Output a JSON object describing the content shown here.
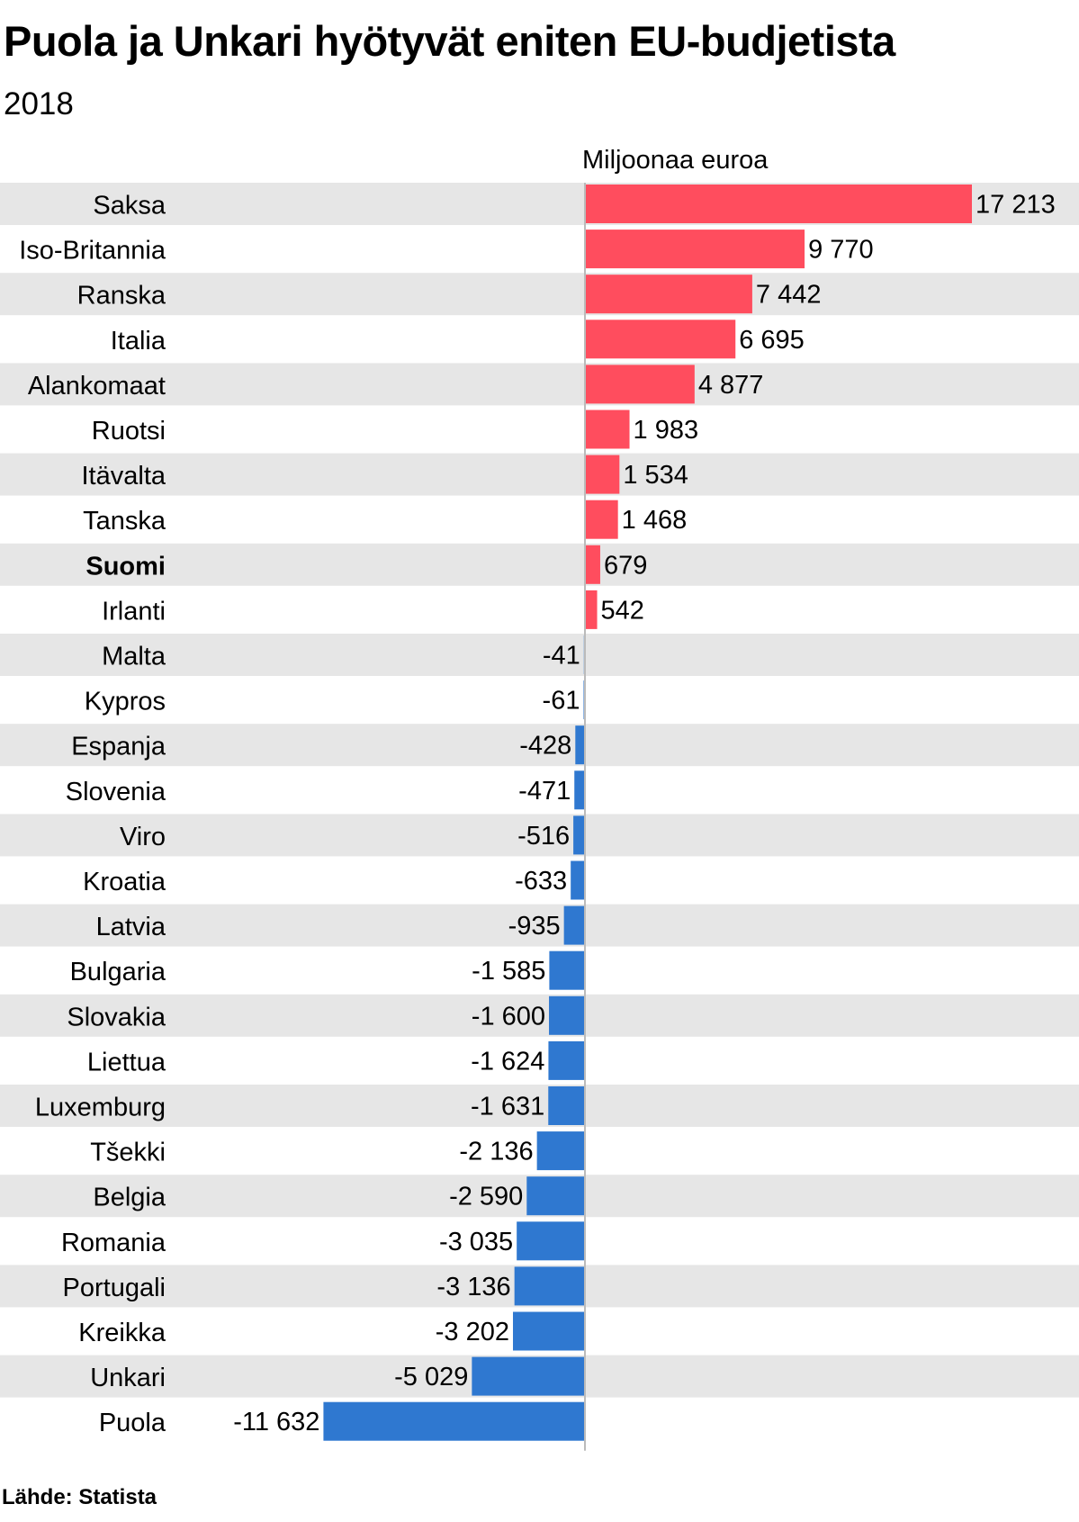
{
  "title": "Puola ja Unkari hyötyvät eniten EU-budjetista",
  "subtitle": "2018",
  "unit_label": "Miljoonaa euroa",
  "source": "Lähde: Statista",
  "colors": {
    "positive": "#ff4d5e",
    "negative": "#2f78d0",
    "row_stripe": "#e6e6e6",
    "axis": "#bbbbbb"
  },
  "chart_data": {
    "type": "bar",
    "orientation": "horizontal",
    "categories": [
      "Saksa",
      "Iso-Britannia",
      "Ranska",
      "Italia",
      "Alankomaat",
      "Ruotsi",
      "Itävalta",
      "Tanska",
      "Suomi",
      "Irlanti",
      "Malta",
      "Kypros",
      "Espanja",
      "Slovenia",
      "Viro",
      "Kroatia",
      "Latvia",
      "Bulgaria",
      "Slovakia",
      "Liettua",
      "Luxemburg",
      "Tšekki",
      "Belgia",
      "Romania",
      "Portugali",
      "Kreikka",
      "Unkari",
      "Puola"
    ],
    "values": [
      17213,
      9770,
      7442,
      6695,
      4877,
      1983,
      1534,
      1468,
      679,
      542,
      -41,
      -61,
      -428,
      -471,
      -516,
      -633,
      -935,
      -1585,
      -1600,
      -1624,
      -1631,
      -2136,
      -2590,
      -3035,
      -3136,
      -3202,
      -5029,
      -11632
    ],
    "value_labels": [
      "17 213",
      "9 770",
      "7 442",
      "6 695",
      "4 877",
      "1 983",
      "1 534",
      "1 468",
      "679",
      "542",
      "-41",
      "-61",
      "-428",
      "-471",
      "-516",
      "-633",
      "-935",
      "-1 585",
      "-1 600",
      "-1 624",
      "-1 631",
      "-2 136",
      "-2 590",
      "-3 035",
      "-3 136",
      "-3 202",
      "-5 029",
      "-11 632"
    ],
    "highlight": "Suomi",
    "xlabel": "Miljoonaa euroa",
    "ylabel": "",
    "xlim": [
      -11632,
      17213
    ],
    "grid": false,
    "legend": "none"
  }
}
